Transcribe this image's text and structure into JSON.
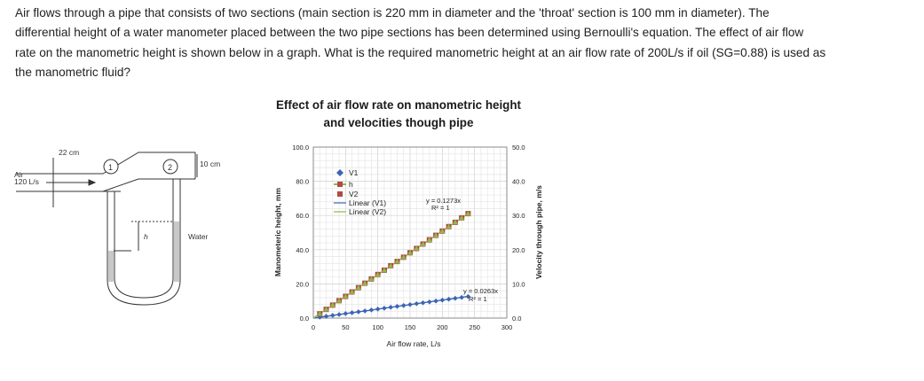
{
  "question": {
    "line1": "Air flows through a pipe that consists of two sections (main section is 220 mm in diameter and the 'throat' section is 100 mm in diameter). The",
    "line2": "differential height of a water manometer placed between the two pipe sections has been determined using Bernoulli's equation. The effect of air flow",
    "line3": "rate on the manometric height is shown below in a graph. What is the required manometric height at an air flow rate of 200L/s if oil (SG=0.88) is used as",
    "line4": "the manometric fluid?"
  },
  "diagram": {
    "main_dim": "22 cm",
    "throat_dim": "10 cm",
    "section1": "1",
    "section2": "2",
    "air_label": "Air",
    "flow_label": "120 L/s",
    "h_label": "h",
    "water_label": "Water"
  },
  "chart_data": {
    "type": "scatter",
    "title_line1": "Effect of air flow rate on manometric height",
    "title_line2": "and velocities though pipe",
    "xlabel": "Air flow rate, L/s",
    "ylabel": "Manometeric height, mm",
    "y2label": "Velocity through pipe, m/s",
    "xlim": [
      0,
      300
    ],
    "ylim": [
      0,
      100
    ],
    "y2lim": [
      0,
      50
    ],
    "xticks": [
      "0",
      "50",
      "100",
      "150",
      "200",
      "250",
      "300"
    ],
    "yticks": [
      "0.0",
      "20.0",
      "40.0",
      "60.0",
      "80.0",
      "100.0"
    ],
    "y2ticks": [
      "0.0",
      "10.0",
      "20.0",
      "30.0",
      "40.0",
      "50.0"
    ],
    "grid": true,
    "legend_position": "top-left",
    "legend": [
      "V1",
      "h",
      "V2",
      "Linear (V1)",
      "Linear (V2)"
    ],
    "annotations": {
      "v2_fit": "y = 0.1273x",
      "v2_r2": "R² = 1",
      "v1_fit": "y = 0.0263x",
      "v1_r2": "R² = 1"
    },
    "series": [
      {
        "name": "V1",
        "axis": "right",
        "marker": "diamond",
        "color": "#3c64b4",
        "x": [
          10,
          20,
          30,
          40,
          50,
          60,
          70,
          80,
          90,
          100,
          110,
          120,
          130,
          140,
          150,
          160,
          170,
          180,
          190,
          200,
          210,
          220,
          230,
          240
        ],
        "y": [
          0.26,
          0.53,
          0.79,
          1.05,
          1.32,
          1.58,
          1.84,
          2.1,
          2.37,
          2.63,
          2.89,
          3.16,
          3.42,
          3.68,
          3.95,
          4.21,
          4.47,
          4.73,
          5.0,
          5.26,
          5.52,
          5.79,
          6.05,
          6.31
        ]
      },
      {
        "name": "h",
        "axis": "left",
        "marker": "square",
        "color": "#b04a45",
        "x": [
          10,
          20,
          30,
          40,
          50,
          60,
          70,
          80,
          90,
          100,
          110,
          120,
          130,
          140,
          150,
          160,
          170,
          180,
          190,
          200,
          210,
          220,
          230,
          240
        ],
        "y": [
          2.5,
          5.1,
          7.6,
          10.2,
          12.7,
          15.3,
          17.8,
          20.4,
          22.9,
          25.5,
          28.0,
          30.6,
          33.1,
          35.6,
          38.2,
          40.7,
          43.3,
          45.8,
          48.4,
          50.9,
          53.5,
          56.0,
          58.6,
          61.1
        ]
      },
      {
        "name": "V2",
        "axis": "right",
        "marker": "triangle",
        "color": "#8cbb4a",
        "x": [
          10,
          20,
          30,
          40,
          50,
          60,
          70,
          80,
          90,
          100,
          110,
          120,
          130,
          140,
          150,
          160,
          170,
          180,
          190,
          200,
          210,
          220,
          230,
          240
        ],
        "y": [
          1.27,
          2.55,
          3.82,
          5.09,
          6.37,
          7.64,
          8.91,
          10.18,
          11.46,
          12.73,
          14.0,
          15.28,
          16.55,
          17.82,
          19.1,
          20.37,
          21.64,
          22.91,
          24.19,
          25.46,
          26.73,
          28.01,
          29.28,
          30.55
        ]
      }
    ]
  }
}
